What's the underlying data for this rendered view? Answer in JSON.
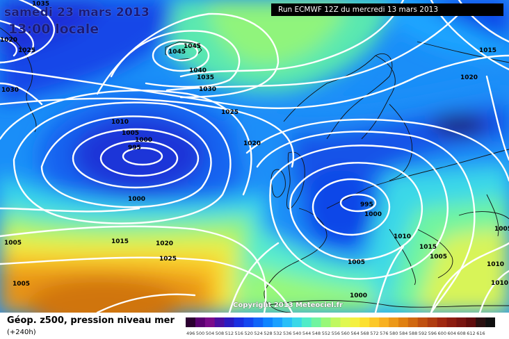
{
  "header": {
    "date": "samedi 23 mars 2013",
    "time": "13:00 locale",
    "run": "Run ECMWF 12Z du mercredi 13 mars 2013"
  },
  "copyright": "Copyright 2013 Meteociel.fr",
  "footer": {
    "parameter": "Géop. z500, pression niveau mer",
    "lead": "(+240h)"
  },
  "legend": {
    "colors": [
      "#2b0030",
      "#5a0070",
      "#7a0a8a",
      "#4b0ea0",
      "#2a1ac0",
      "#1a2ee0",
      "#1446f0",
      "#1064f8",
      "#0e84ff",
      "#1aa0ff",
      "#28bff8",
      "#3ad8e8",
      "#50ecc8",
      "#70f4a0",
      "#98f878",
      "#c0f860",
      "#e0f850",
      "#f4f040",
      "#fce030",
      "#fcc828",
      "#f8b020",
      "#ec9818",
      "#e08010",
      "#d06810",
      "#c05010",
      "#b03c10",
      "#a02810",
      "#8c1c10",
      "#781410",
      "#600c0c",
      "#2a1010",
      "#101010"
    ],
    "values": [
      "496",
      "500",
      "504",
      "508",
      "512",
      "516",
      "520",
      "524",
      "528",
      "532",
      "536",
      "540",
      "544",
      "548",
      "552",
      "556",
      "560",
      "564",
      "568",
      "572",
      "576",
      "580",
      "584",
      "588",
      "592",
      "596",
      "600",
      "604",
      "608",
      "612",
      "616",
      ""
    ]
  },
  "isobar_labels": [
    {
      "text": "1035"
    },
    {
      "text": "1020"
    },
    {
      "text": "1025"
    },
    {
      "text": "1030"
    },
    {
      "text": "1045"
    },
    {
      "text": "1045"
    },
    {
      "text": "1040"
    },
    {
      "text": "1035"
    },
    {
      "text": "1030"
    },
    {
      "text": "1025"
    },
    {
      "text": "1015"
    },
    {
      "text": "1020"
    },
    {
      "text": "1010"
    },
    {
      "text": "1005"
    },
    {
      "text": "1000"
    },
    {
      "text": "995"
    },
    {
      "text": "1000"
    },
    {
      "text": "1020"
    },
    {
      "text": "995"
    },
    {
      "text": "1000"
    },
    {
      "text": "1005"
    },
    {
      "text": "1015"
    },
    {
      "text": "1020"
    },
    {
      "text": "1025"
    },
    {
      "text": "1005"
    },
    {
      "text": "1005"
    },
    {
      "text": "1010"
    },
    {
      "text": "1015"
    },
    {
      "text": "1005"
    },
    {
      "text": "1000"
    },
    {
      "text": "1005"
    },
    {
      "text": "1010"
    },
    {
      "text": "1010"
    }
  ]
}
